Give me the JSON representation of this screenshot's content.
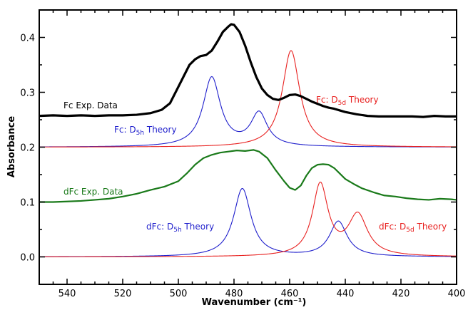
{
  "chart_data": {
    "type": "line",
    "xlabel": "Wavenumber (cm⁻¹)",
    "ylabel": "Absorbance",
    "xlim": [
      550,
      400
    ],
    "ylim": [
      -0.05,
      0.45
    ],
    "x_ticks": [
      540,
      520,
      500,
      480,
      460,
      440,
      420,
      400
    ],
    "y_ticks": [
      0.0,
      0.1,
      0.2,
      0.3,
      0.4
    ],
    "x_tick_labels": [
      "540",
      "520",
      "500",
      "480",
      "460",
      "440",
      "420",
      "400"
    ],
    "y_tick_labels": [
      "0.0",
      "0.1",
      "0.2",
      "0.3",
      "0.4"
    ],
    "grid": false,
    "legend": "none",
    "colors": {
      "fc_exp": "#000000",
      "dfc_exp": "#1a7a1a",
      "d5h": "#1f1fcc",
      "d5d": "#e8201f"
    },
    "series": [
      {
        "key": "fc_exp",
        "x": [
          550,
          545,
          540,
          535,
          530,
          525,
          520,
          515,
          510,
          506,
          503,
          500,
          498,
          496,
          494,
          492,
          490,
          488,
          486,
          484,
          482,
          481,
          480,
          478,
          476,
          474,
          472,
          470,
          468,
          466,
          464,
          462,
          460,
          458,
          456,
          454,
          452,
          450,
          448,
          446,
          444,
          442,
          440,
          436,
          432,
          428,
          424,
          420,
          416,
          412,
          408,
          404,
          400
        ],
        "y": [
          0.257,
          0.258,
          0.257,
          0.258,
          0.257,
          0.258,
          0.258,
          0.259,
          0.262,
          0.268,
          0.28,
          0.31,
          0.33,
          0.35,
          0.36,
          0.366,
          0.368,
          0.376,
          0.392,
          0.41,
          0.42,
          0.424,
          0.423,
          0.41,
          0.385,
          0.355,
          0.328,
          0.307,
          0.295,
          0.288,
          0.286,
          0.29,
          0.295,
          0.296,
          0.293,
          0.288,
          0.283,
          0.279,
          0.275,
          0.272,
          0.27,
          0.267,
          0.264,
          0.26,
          0.257,
          0.256,
          0.256,
          0.256,
          0.256,
          0.255,
          0.257,
          0.256,
          0.256
        ]
      },
      {
        "key": "dfc_exp",
        "x": [
          550,
          545,
          540,
          535,
          530,
          525,
          520,
          515,
          510,
          505,
          500,
          497,
          494,
          491,
          488,
          485,
          482,
          479,
          476,
          473,
          471,
          468,
          465,
          462,
          460,
          458,
          456,
          454,
          452,
          450,
          448,
          446,
          444,
          442,
          440,
          437,
          434,
          430,
          426,
          422,
          418,
          414,
          410,
          406,
          402,
          400
        ],
        "y": [
          0.1,
          0.1,
          0.101,
          0.102,
          0.104,
          0.106,
          0.11,
          0.115,
          0.122,
          0.128,
          0.138,
          0.152,
          0.168,
          0.18,
          0.186,
          0.19,
          0.192,
          0.194,
          0.193,
          0.195,
          0.192,
          0.18,
          0.158,
          0.138,
          0.126,
          0.122,
          0.13,
          0.148,
          0.162,
          0.168,
          0.169,
          0.168,
          0.162,
          0.152,
          0.142,
          0.133,
          0.125,
          0.118,
          0.112,
          0.11,
          0.107,
          0.105,
          0.104,
          0.106,
          0.105,
          0.104
        ]
      }
    ],
    "theory": [
      {
        "key": "d5h",
        "x0": 550,
        "x1": 400,
        "base": 0.2,
        "peaks": [
          {
            "c": 488,
            "h": 0.126,
            "w": 3.8
          },
          {
            "c": 471,
            "h": 0.06,
            "w": 3.6
          }
        ]
      },
      {
        "key": "d5d",
        "x0": 550,
        "x1": 400,
        "base": 0.2,
        "peaks": [
          {
            "c": 459.5,
            "h": 0.176,
            "w": 3.8
          }
        ]
      },
      {
        "key": "d5h",
        "x0": 550,
        "x1": 400,
        "base": 0.0,
        "peaks": [
          {
            "c": 477,
            "h": 0.124,
            "w": 3.8
          },
          {
            "c": 442.5,
            "h": 0.064,
            "w": 3.8
          }
        ]
      },
      {
        "key": "d5d",
        "x0": 550,
        "x1": 400,
        "base": 0.0,
        "peaks": [
          {
            "c": 449,
            "h": 0.13,
            "w": 3.4
          },
          {
            "c": 435.5,
            "h": 0.074,
            "w": 4.2
          }
        ]
      }
    ],
    "annotations": {
      "fc_exp": "Fc  Exp. Data",
      "fc_d5h_prefix": "Fc: D",
      "fc_d5h_sub": "5h",
      "fc_d5h_suffix": " Theory",
      "fc_d5d_prefix": "Fc: D",
      "fc_d5d_sub": "5d",
      "fc_d5d_suffix": " Theory",
      "dfc_exp": "dFc Exp. Data",
      "dfc_d5h_prefix": "dFc: D",
      "dfc_d5h_sub": "5h",
      "dfc_d5h_suffix": " Theory",
      "dfc_d5d_prefix": "dFc: D",
      "dfc_d5d_sub": "5d",
      "dfc_d5d_suffix": " Theory"
    }
  }
}
